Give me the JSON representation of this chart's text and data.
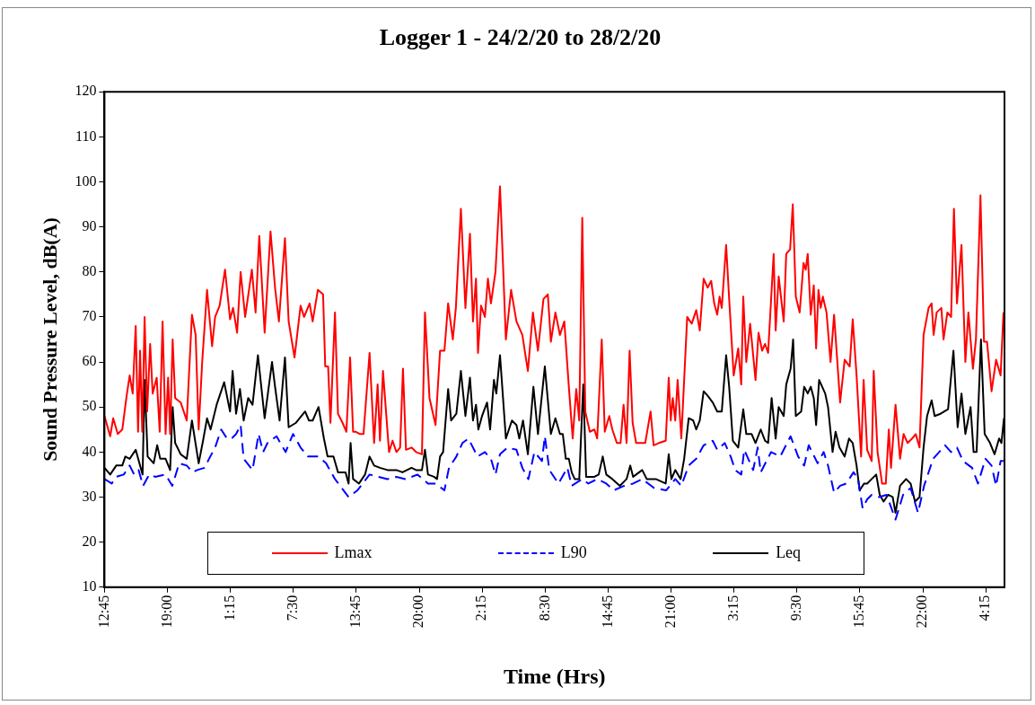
{
  "chart_data": {
    "type": "line",
    "title": "Logger 1 - 24/2/20 to 28/2/20",
    "xlabel": "Time (Hrs)",
    "ylabel": "Sound Pressure Level, dB(A)",
    "xlim": [
      "--02-24T12:45",
      "--02-28T06:06"
    ],
    "xticks": [
      {
        "value": "--02-24T12:45",
        "label": "12:45"
      },
      {
        "value": "--02-24T19:00",
        "label": "19:00"
      },
      {
        "value": "--02-25T01:15",
        "label": "1:15"
      },
      {
        "value": "--02-25T07:30",
        "label": "7:30"
      },
      {
        "value": "--02-25T13:45",
        "label": "13:45"
      },
      {
        "value": "--02-25T20:00",
        "label": "20:00"
      },
      {
        "value": "--02-26T02:15",
        "label": "2:15"
      },
      {
        "value": "--02-26T08:30",
        "label": "8:30"
      },
      {
        "value": "--02-26T14:45",
        "label": "14:45"
      },
      {
        "value": "--02-26T21:00",
        "label": "21:00"
      },
      {
        "value": "--02-27T03:15",
        "label": "3:15"
      },
      {
        "value": "--02-27T09:30",
        "label": "9:30"
      },
      {
        "value": "--02-27T15:45",
        "label": "15:45"
      },
      {
        "value": "--02-27T22:00",
        "label": "22:00"
      },
      {
        "value": "--02-28T04:15",
        "label": "4:15"
      }
    ],
    "ylim": [
      10,
      120
    ],
    "yticks": [
      10,
      20,
      30,
      40,
      50,
      60,
      70,
      80,
      90,
      100,
      110,
      120
    ],
    "grid": false,
    "legend": "bottom",
    "marker": "none",
    "line_style": "solid",
    "series": [
      {
        "name": "Lmax",
        "color": "#ff0000",
        "x": [
          "--02-24T12:45",
          "--02-24T13:19",
          "--02-24T13:37",
          "--02-24T14:04",
          "--02-24T14:31",
          "--02-24T14:57",
          "--02-24T15:15",
          "--02-24T15:33",
          "--02-24T15:51",
          "--02-24T16:05",
          "--02-24T16:17",
          "--02-24T16:30",
          "--02-24T16:44",
          "--02-24T16:59",
          "--02-24T17:17",
          "--02-24T17:32",
          "--02-24T17:56",
          "--02-24T18:14",
          "--02-24T18:31",
          "--02-24T18:49",
          "--02-24T19:04",
          "--02-24T19:16",
          "--02-24T19:31",
          "--02-24T19:46",
          "--02-24T20:19",
          "--02-24T20:55",
          "--02-24T21:26",
          "--02-24T21:48",
          "--02-24T22:06",
          "--02-24T22:27",
          "--02-24T22:56",
          "--02-24T23:26",
          "--02-24T23:44",
          "--02-25T00:11",
          "--02-25T00:43",
          "--02-25T01:13",
          "--02-25T01:31",
          "--02-25T01:55",
          "--02-25T02:16",
          "--02-25T02:43",
          "--02-25T03:23",
          "--02-25T03:45",
          "--02-25T04:07",
          "--02-25T04:39",
          "--02-25T05:14",
          "--02-25T05:41",
          "--02-25T06:04",
          "--02-25T06:40",
          "--02-25T07:02",
          "--02-25T07:37",
          "--02-25T08:13",
          "--02-25T08:34",
          "--02-25T09:07",
          "--02-25T09:25",
          "--02-25T09:56",
          "--02-25T10:27",
          "--02-25T10:40",
          "--02-25T10:57",
          "--02-25T11:11",
          "--02-25T11:38",
          "--02-25T11:56",
          "--02-25T12:23",
          "--02-25T12:46",
          "--02-25T13:08",
          "--02-25T13:26",
          "--02-25T13:43",
          "--02-25T14:07",
          "--02-25T14:28",
          "--02-25T15:04",
          "--02-25T15:31",
          "--02-25T15:52",
          "--02-25T16:06",
          "--02-25T16:24",
          "--02-25T17:00",
          "--02-25T17:21",
          "--02-25T17:44",
          "--02-25T18:06",
          "--02-25T18:23",
          "--02-25T18:41",
          "--02-25T19:14",
          "--02-25T19:41",
          "--02-25T20:16",
          "--02-25T20:34",
          "--02-25T21:01",
          "--02-25T21:37",
          "--02-25T22:04",
          "--02-25T22:30",
          "--02-25T22:52",
          "--02-25T23:20",
          "--02-25T23:38",
          "--02-26T00:08",
          "--02-26T00:35",
          "--02-26T01:02",
          "--02-26T01:20",
          "--02-26T01:38",
          "--02-26T01:50",
          "--02-26T02:08",
          "--02-26T02:31",
          "--02-26T02:49",
          "--02-26T03:07",
          "--02-26T03:34",
          "--02-26T04:01",
          "--02-26T04:36",
          "--02-26T05:07",
          "--02-26T05:39",
          "--02-26T06:14",
          "--02-26T06:47",
          "--02-26T07:17",
          "--02-26T07:47",
          "--02-26T08:20",
          "--02-26T08:46",
          "--02-26T09:04",
          "--02-26T09:31",
          "--02-26T09:58",
          "--02-26T10:24",
          "--02-26T10:51",
          "--02-26T11:14",
          "--02-26T11:35",
          "--02-26T11:53",
          "--02-26T12:11",
          "--02-26T12:29",
          "--02-26T12:56",
          "--02-26T13:23",
          "--02-26T13:40",
          "--02-26T14:07",
          "--02-26T14:25",
          "--02-26T14:52",
          "--02-26T15:10",
          "--02-26T15:37",
          "--02-26T15:59",
          "--02-26T16:17",
          "--02-26T16:35",
          "--02-26T16:53",
          "--02-26T17:11",
          "--02-26T17:32",
          "--02-26T18:26",
          "--02-26T18:58",
          "--02-26T19:16",
          "--02-26T19:47",
          "--02-26T20:28",
          "--02-26T20:46",
          "--02-26T20:58",
          "--02-26T21:10",
          "--02-26T21:25",
          "--02-26T21:39",
          "--02-26T22:01",
          "--02-26T22:36",
          "--02-26T23:03",
          "--02-26T23:30",
          "--02-26T23:51",
          "--02-27T00:14",
          "--02-27T00:38",
          "--02-27T00:59",
          "--02-27T01:17",
          "--02-27T01:35",
          "--02-27T01:49",
          "--02-27T02:02",
          "--02-27T02:28",
          "--02-27T02:46",
          "--02-27T03:13",
          "--02-27T03:40",
          "--02-27T03:58",
          "--02-27T04:10",
          "--02-27T04:28",
          "--02-27T04:51",
          "--02-27T05:23",
          "--02-27T05:41",
          "--02-27T06:02",
          "--02-27T06:20",
          "--02-27T06:38",
          "--02-27T07:11",
          "--02-27T07:23",
          "--02-27T07:41",
          "--02-27T08:11",
          "--02-27T08:26",
          "--02-27T08:49",
          "--02-27T09:05",
          "--02-27T09:23",
          "--02-27T09:46",
          "--02-27T10:09",
          "--02-27T10:22",
          "--02-27T10:34",
          "--02-27T10:52",
          "--02-27T11:10",
          "--02-27T11:24",
          "--02-27T11:38",
          "--02-27T11:51",
          "--02-27T12:04",
          "--02-27T12:26",
          "--02-27T12:50",
          "--02-27T13:11",
          "--02-27T13:47",
          "--02-27T14:14",
          "--02-27T14:44",
          "--02-27T15:02",
          "--02-27T15:25",
          "--02-27T15:52",
          "--02-27T16:07",
          "--02-27T16:28",
          "--02-27T16:55",
          "--02-27T17:07",
          "--02-27T17:30",
          "--02-27T17:57",
          "--02-27T18:19",
          "--02-27T18:37",
          "--02-27T18:50",
          "--02-27T19:17",
          "--02-27T19:44",
          "--02-27T20:05",
          "--02-27T20:29",
          "--02-27T20:56",
          "--02-27T21:17",
          "--02-27T21:40",
          "--02-27T22:04",
          "--02-27T22:34",
          "--02-27T22:52",
          "--02-27T23:04",
          "--02-27T23:22",
          "--02-27T23:50",
          "--02-28T00:03",
          "--02-28T00:26",
          "--02-28T00:48",
          "--02-28T01:05",
          "--02-28T01:23",
          "--02-28T01:50",
          "--02-28T02:13",
          "--02-28T02:31",
          "--02-28T02:58",
          "--02-28T03:16",
          "--02-28T03:43",
          "--02-28T04:04",
          "--02-28T04:22",
          "--02-28T04:49",
          "--02-28T05:16",
          "--02-28T05:43",
          "--02-28T06:00"
        ],
        "values": [
          48,
          43.5,
          47.5,
          44,
          45,
          52.5,
          57,
          53,
          68,
          44.5,
          62.5,
          44.5,
          70,
          49,
          64,
          53,
          56.5,
          44.5,
          69,
          44,
          56.5,
          44,
          65,
          52,
          51,
          47,
          70.5,
          66,
          45,
          60,
          76,
          63.5,
          70,
          72.5,
          80.5,
          69.5,
          72,
          66.5,
          80,
          70,
          80.5,
          71,
          88,
          66.5,
          89,
          76.5,
          69,
          87.5,
          69,
          61,
          72.5,
          70,
          73,
          69,
          76,
          75,
          59,
          59,
          46.5,
          71,
          48.5,
          46.5,
          44.5,
          61,
          44.5,
          44.5,
          44,
          44,
          62,
          42,
          55,
          42.5,
          58,
          40,
          42.5,
          40,
          41,
          58.5,
          40.5,
          41,
          40,
          39.5,
          71,
          52,
          46,
          62.5,
          62.5,
          73,
          65,
          72,
          94,
          72,
          88.5,
          69,
          78.5,
          62,
          72.5,
          70,
          78.5,
          73,
          80,
          99,
          65,
          76,
          69,
          66,
          58,
          71,
          62.5,
          74,
          75,
          64.5,
          71,
          66,
          69,
          54.5,
          43,
          54,
          47,
          92,
          49,
          44.5,
          45,
          43,
          65,
          44.5,
          48,
          45,
          42,
          42,
          50.5,
          42,
          62.5,
          46.5,
          42,
          42,
          49,
          41.5,
          42,
          42.5,
          56.5,
          47,
          52,
          47,
          56,
          43,
          70,
          68.5,
          71.5,
          67,
          78.5,
          76.5,
          78,
          73,
          70.5,
          74.5,
          72,
          86,
          74,
          57,
          63,
          55,
          74.5,
          60,
          68.5,
          56,
          66.5,
          62.5,
          64,
          62,
          84,
          67,
          79,
          69,
          84,
          85,
          95,
          74.5,
          71,
          82,
          80.5,
          84,
          70.5,
          77,
          63,
          76,
          72,
          74.5,
          71,
          60,
          70.5,
          51,
          60.5,
          59,
          69.5,
          57,
          39,
          56,
          40.5,
          38,
          58,
          40,
          33,
          33,
          45,
          36.5,
          50.5,
          38.5,
          44,
          42,
          43,
          44,
          41,
          66,
          72,
          73,
          66,
          71,
          72,
          65,
          71,
          70,
          94,
          73,
          86,
          60,
          71,
          58.5,
          65,
          97,
          64.5,
          64.5,
          53.5,
          60.5,
          57,
          71
        ]
      },
      {
        "name": "L90",
        "color": "#0000ff",
        "line_style": "dashed",
        "x": [
          "--02-24T12:45",
          "--02-24T13:28",
          "--02-24T13:55",
          "--02-24T14:40",
          "--02-24T15:15",
          "--02-24T15:42",
          "--02-24T16:08",
          "--02-24T16:35",
          "--02-24T17:11",
          "--02-24T17:47",
          "--02-24T18:49",
          "--02-24T19:29",
          "--02-24T20:10",
          "--02-24T20:55",
          "--02-24T21:30",
          "--02-24T21:57",
          "--02-24T22:41",
          "--02-24T23:08",
          "--02-24T23:44",
          "--02-25T00:20",
          "--02-25T00:55",
          "--02-25T01:22",
          "--02-25T01:49",
          "--02-25T02:16",
          "--02-25T02:34",
          "--02-25T03:27",
          "--02-25T04:03",
          "--02-25T04:30",
          "--02-25T04:56",
          "--02-25T05:50",
          "--02-25T06:44",
          "--02-25T07:28",
          "--02-25T08:13",
          "--02-25T08:58",
          "--02-25T10:00",
          "--02-25T10:45",
          "--02-25T11:38",
          "--02-25T12:59",
          "--02-25T13:52",
          "--02-25T15:04",
          "--02-25T15:58",
          "--02-25T16:51",
          "--02-25T17:44",
          "--02-25T18:38",
          "--02-25T19:50",
          "--02-25T20:52",
          "--02-25T21:37",
          "--02-25T22:30",
          "--02-25T22:57",
          "--02-25T23:41",
          "--02-26T00:17",
          "--02-26T00:53",
          "--02-26T01:47",
          "--02-26T02:31",
          "--02-26T03:07",
          "--02-26T03:34",
          "--02-26T04:01",
          "--02-26T04:45",
          "--02-26T05:39",
          "--02-26T06:14",
          "--02-26T06:50",
          "--02-26T07:26",
          "--02-26T08:11",
          "--02-26T08:28",
          "--02-26T08:55",
          "--02-26T09:49",
          "--02-26T10:42",
          "--02-26T11:08",
          "--02-26T12:11",
          "--02-26T12:47",
          "--02-26T13:40",
          "--02-26T14:34",
          "--02-26T15:19",
          "--02-26T16:21",
          "--02-26T17:14",
          "--02-26T18:08",
          "--02-26T19:20",
          "--02-26T20:31",
          "--02-26T21:25",
          "--02-26T22:01",
          "--02-26T22:45",
          "--02-26T23:30",
          "--02-27T00:14",
          "--02-27T01:08",
          "--02-27T01:35",
          "--02-27T02:20",
          "--02-27T02:55",
          "--02-27T03:22",
          "--02-27T03:58",
          "--02-27T04:16",
          "--02-27T05:09",
          "--02-27T05:36",
          "--02-27T05:54",
          "--02-27T06:56",
          "--02-27T07:50",
          "--02-27T08:52",
          "--02-27T09:37",
          "--02-27T10:13",
          "--02-27T10:40",
          "--02-27T11:33",
          "--02-27T12:09",
          "--02-27T12:35",
          "--02-27T13:11",
          "--02-27T13:47",
          "--02-27T14:23",
          "--02-27T15:07",
          "--02-27T15:34",
          "--02-27T16:01",
          "--02-27T16:28",
          "--02-27T16:55",
          "--02-27T17:39",
          "--02-27T18:24",
          "--02-27T19:17",
          "--02-27T20:02",
          "--02-27T20:47",
          "--02-27T21:31",
          "--02-27T22:07",
          "--02-27T23:01",
          "--02-28T00:12",
          "--02-28T00:48",
          "--02-28T01:23",
          "--02-28T01:59",
          "--02-28T02:53",
          "--02-28T03:28",
          "--02-28T04:13",
          "--02-28T04:49",
          "--02-28T05:16",
          "--02-28T05:43",
          "--02-28T06:00"
        ],
        "values": [
          34,
          33,
          34.5,
          35,
          37,
          35,
          36,
          32.5,
          35,
          34.5,
          35,
          32.5,
          37.5,
          37,
          35.5,
          36,
          36.5,
          38.5,
          41,
          45,
          43,
          43,
          44,
          46,
          38.5,
          36,
          44,
          40,
          42,
          43.5,
          40,
          44,
          41,
          39,
          39,
          37.5,
          34,
          30,
          31.5,
          35,
          34.5,
          34,
          34.5,
          34,
          35,
          33,
          33,
          31.5,
          36.5,
          39,
          42,
          43,
          39,
          40,
          38.5,
          35,
          39.5,
          41,
          40.5,
          36.5,
          34,
          40,
          38,
          43.5,
          36,
          33,
          36.5,
          32.5,
          34,
          33,
          34,
          33,
          31.5,
          32.5,
          33,
          34,
          32,
          31.5,
          34,
          32.5,
          37,
          38.5,
          41.5,
          42.5,
          40.5,
          42,
          39,
          36,
          35,
          40.5,
          36,
          41,
          35.5,
          40,
          39,
          43.5,
          39,
          37,
          41.5,
          37.5,
          40,
          37,
          31,
          32.5,
          33,
          35.5,
          34,
          27.5,
          29.5,
          30.5,
          30,
          30.5,
          25,
          30.5,
          32,
          26.5,
          32.5,
          38.5,
          41.5,
          40,
          41,
          38,
          36.5,
          33,
          38.5,
          37,
          32.5,
          38,
          38
        ]
      },
      {
        "name": "Leq",
        "color": "#000000",
        "x": [
          "--02-24T12:45",
          "--02-24T13:19",
          "--02-24T13:55",
          "--02-24T14:31",
          "--02-24T14:49",
          "--02-24T15:15",
          "--02-24T15:51",
          "--02-24T16:17",
          "--02-24T16:32",
          "--02-24T16:44",
          "--02-24T17:02",
          "--02-24T17:38",
          "--02-24T17:59",
          "--02-24T18:17",
          "--02-24T18:49",
          "--02-24T19:16",
          "--02-24T19:31",
          "--02-24T19:46",
          "--02-24T20:19",
          "--02-24T20:55",
          "--02-24T21:26",
          "--02-24T22:06",
          "--02-24T22:32",
          "--02-24T22:56",
          "--02-24T23:17",
          "--02-24T23:53",
          "--02-25T00:38",
          "--02-25T01:13",
          "--02-25T01:28",
          "--02-25T01:49",
          "--02-25T02:12",
          "--02-25T02:34",
          "--02-25T03:01",
          "--02-25T03:27",
          "--02-25T03:59",
          "--02-25T04:39",
          "--02-25T05:23",
          "--02-25T05:41",
          "--02-25T06:08",
          "--02-25T06:40",
          "--02-25T07:02",
          "--02-25T07:46",
          "--02-25T08:40",
          "--02-25T09:03",
          "--02-25T09:25",
          "--02-25T10:00",
          "--02-25T10:32",
          "--02-25T10:54",
          "--02-25T11:29",
          "--02-25T11:56",
          "--02-25T12:41",
          "--02-25T12:59",
          "--02-25T13:11",
          "--02-25T13:26",
          "--02-25T14:01",
          "--02-25T14:37",
          "--02-25T15:04",
          "--02-25T15:31",
          "--02-25T16:06",
          "--02-25T16:51",
          "--02-25T17:44",
          "--02-25T18:20",
          "--02-25T19:14",
          "--02-25T19:41",
          "--02-25T20:16",
          "--02-25T20:34",
          "--02-25T20:52",
          "--02-25T21:28",
          "--02-25T21:46",
          "--02-25T22:04",
          "--02-25T22:22",
          "--02-25T22:52",
          "--02-25T23:10",
          "--02-25T23:41",
          "--02-26T00:08",
          "--02-26T00:35",
          "--02-26T01:02",
          "--02-26T01:20",
          "--02-26T01:38",
          "--02-26T01:52",
          "--02-26T02:14",
          "--02-26T02:44",
          "--02-26T03:02",
          "--02-26T03:25",
          "--02-26T03:39",
          "--02-26T04:01",
          "--02-26T04:36",
          "--02-26T05:12",
          "--02-26T05:39",
          "--02-26T05:56",
          "--02-26T06:18",
          "--02-26T06:47",
          "--02-26T07:20",
          "--02-26T07:47",
          "--02-26T08:28",
          "--02-26T09:04",
          "--02-26T09:31",
          "--02-26T09:58",
          "--02-26T10:15",
          "--02-26T10:33",
          "--02-26T10:51",
          "--02-26T11:08",
          "--02-26T11:26",
          "--02-26T11:53",
          "--02-26T12:17",
          "--02-26T12:34",
          "--02-26T13:23",
          "--02-26T13:49",
          "--02-26T14:13",
          "--02-26T14:34",
          "--02-26T15:10",
          "--02-26T15:55",
          "--02-26T16:35",
          "--02-26T16:57",
          "--02-26T17:14",
          "--02-26T18:08",
          "--02-26T18:35",
          "--02-26T19:29",
          "--02-26T20:28",
          "--02-26T20:46",
          "--02-26T21:02",
          "--02-26T21:25",
          "--02-26T21:57",
          "--02-26T22:18",
          "--02-26T22:45",
          "--02-26T23:12",
          "--02-26T23:30",
          "--02-26T23:51",
          "--02-27T00:14",
          "--02-27T00:38",
          "--02-27T01:08",
          "--02-27T01:35",
          "--02-27T02:02",
          "--02-27T02:28",
          "--02-27T02:46",
          "--02-27T03:08",
          "--02-27T03:40",
          "--02-27T04:10",
          "--02-27T04:28",
          "--02-27T05:00",
          "--02-27T05:23",
          "--02-27T05:54",
          "--02-27T06:20",
          "--02-27T06:38",
          "--02-27T06:59",
          "--02-27T07:23",
          "--02-27T07:41",
          "--02-27T08:11",
          "--02-27T08:26",
          "--02-27T08:52",
          "--02-27T09:07",
          "--02-27T09:23",
          "--02-27T09:55",
          "--02-27T10:13",
          "--02-27T10:34",
          "--02-27T10:52",
          "--02-27T11:10",
          "--02-27T11:24",
          "--02-27T11:42",
          "--02-27T12:18",
          "--02-27T12:35",
          "--02-27T13:02",
          "--02-27T13:20",
          "--02-27T13:43",
          "--02-27T14:14",
          "--02-27T14:40",
          "--02-27T15:02",
          "--02-27T15:25",
          "--02-27T15:43",
          "--02-27T16:10",
          "--02-27T16:28",
          "--02-27T16:55",
          "--02-27T17:22",
          "--02-27T17:43",
          "--02-27T18:06",
          "--02-27T18:33",
          "--02-27T19:00",
          "--02-27T19:17",
          "--02-27T19:44",
          "--02-27T20:20",
          "--02-27T20:47",
          "--02-27T21:13",
          "--02-27T21:40",
          "--02-27T22:04",
          "--02-27T22:25",
          "--02-27T22:52",
          "--02-27T23:10",
          "--02-27T23:45",
          "--02-28T00:30",
          "--02-28T01:02",
          "--02-28T01:27",
          "--02-28T01:50",
          "--02-28T02:13",
          "--02-28T02:44",
          "--02-28T03:02",
          "--02-28T03:20",
          "--02-28T03:46",
          "--02-28T04:08",
          "--02-28T04:40",
          "--02-28T05:07",
          "--02-28T05:34",
          "--02-28T05:48",
          "--02-28T06:03"
        ],
        "values": [
          36.5,
          35,
          37,
          37,
          39,
          38.5,
          40.5,
          37,
          35,
          56,
          39,
          37.5,
          41.5,
          38.5,
          38.5,
          36,
          50,
          42,
          39.5,
          38.5,
          47,
          37.5,
          42.5,
          47.5,
          45,
          50.5,
          55.5,
          49,
          58,
          48.5,
          54,
          47,
          52,
          50.5,
          61.5,
          47.5,
          60,
          54.5,
          47,
          61,
          45.5,
          46.5,
          49,
          47,
          47,
          50,
          43,
          39,
          39,
          35.5,
          35.5,
          33,
          42,
          34,
          33,
          35,
          39,
          37,
          36.5,
          36,
          36,
          35.5,
          36.5,
          36,
          36,
          40.5,
          35,
          34.5,
          34,
          39,
          40,
          54,
          47,
          48.5,
          58,
          48,
          56.5,
          47,
          50.5,
          45,
          48,
          51,
          45,
          56,
          53,
          61.5,
          43,
          47,
          46,
          43,
          47,
          39.5,
          54.5,
          44,
          59,
          44,
          47.5,
          44,
          44,
          38.5,
          38.5,
          35.5,
          34,
          34,
          55,
          34.5,
          34.5,
          35,
          39,
          35,
          34,
          32.5,
          34,
          37,
          34.5,
          36,
          34,
          34,
          33,
          39.5,
          34,
          36,
          34,
          38.5,
          47.5,
          47,
          45,
          47,
          53.5,
          52.5,
          51,
          49,
          49,
          61.5,
          54.5,
          42.5,
          41,
          49.5,
          44,
          44,
          42,
          45,
          42.5,
          42,
          52,
          43,
          50,
          48,
          55,
          58.5,
          65,
          48,
          49,
          54.5,
          53,
          54.5,
          52,
          46,
          56,
          53,
          50,
          40,
          44.5,
          41,
          39,
          43,
          42,
          37,
          31.5,
          33,
          33,
          34,
          35,
          30.5,
          29,
          30.5,
          30,
          26.5,
          32.5,
          34,
          33,
          29,
          30,
          41,
          48,
          51.5,
          48,
          48.5,
          49.5,
          62.5,
          45.5,
          53,
          44,
          50,
          40,
          40,
          65,
          44,
          42,
          39.5,
          43,
          42,
          47.5
        ]
      }
    ]
  }
}
